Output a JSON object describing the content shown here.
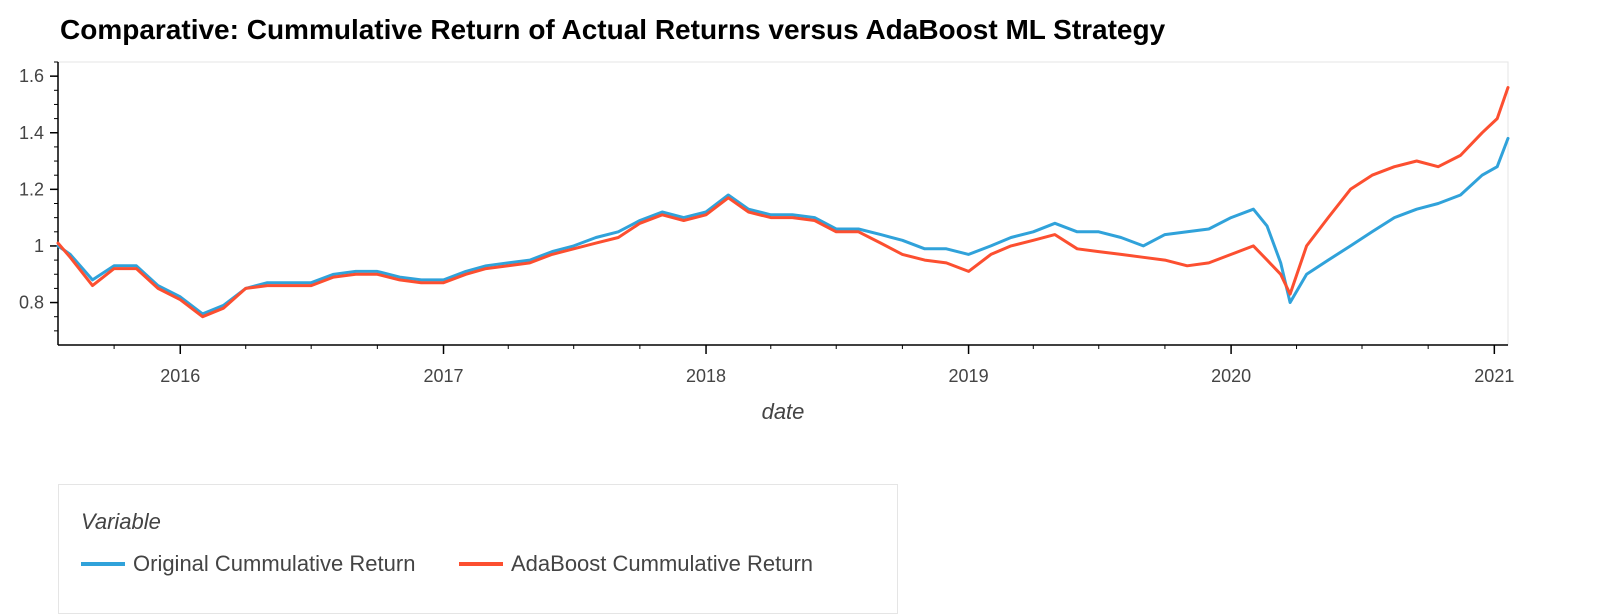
{
  "chart_data": {
    "type": "line",
    "title": "Comparative: Cummulative Return of Actual Returns versus AdaBoost ML Strategy",
    "xlabel": "date",
    "ylabel": "",
    "x_ticks": [
      "2016",
      "2017",
      "2018",
      "2019",
      "2020",
      "2021"
    ],
    "y_ticks": [
      "0.8",
      "1",
      "1.2",
      "1.4",
      "1.6"
    ],
    "xlim": [
      "2015-07-15",
      "2021-01-20"
    ],
    "ylim": [
      0.65,
      1.65
    ],
    "grid": false,
    "legend": {
      "title": "Variable",
      "placement": "bottom-left"
    },
    "series": [
      {
        "name": "Original Cummulative Return",
        "color": "#30a2da",
        "points": [
          [
            "2015-07-15",
            1.0
          ],
          [
            "2015-08-01",
            0.97
          ],
          [
            "2015-09-01",
            0.88
          ],
          [
            "2015-10-01",
            0.93
          ],
          [
            "2015-11-01",
            0.93
          ],
          [
            "2015-12-01",
            0.86
          ],
          [
            "2016-01-01",
            0.82
          ],
          [
            "2016-02-01",
            0.76
          ],
          [
            "2016-03-01",
            0.79
          ],
          [
            "2016-04-01",
            0.85
          ],
          [
            "2016-05-01",
            0.87
          ],
          [
            "2016-06-01",
            0.87
          ],
          [
            "2016-07-01",
            0.87
          ],
          [
            "2016-08-01",
            0.9
          ],
          [
            "2016-09-01",
            0.91
          ],
          [
            "2016-10-01",
            0.91
          ],
          [
            "2016-11-01",
            0.89
          ],
          [
            "2016-12-01",
            0.88
          ],
          [
            "2017-01-01",
            0.88
          ],
          [
            "2017-02-01",
            0.91
          ],
          [
            "2017-03-01",
            0.93
          ],
          [
            "2017-04-01",
            0.94
          ],
          [
            "2017-05-01",
            0.95
          ],
          [
            "2017-06-01",
            0.98
          ],
          [
            "2017-07-01",
            1.0
          ],
          [
            "2017-08-01",
            1.03
          ],
          [
            "2017-09-01",
            1.05
          ],
          [
            "2017-10-01",
            1.09
          ],
          [
            "2017-11-01",
            1.12
          ],
          [
            "2017-12-01",
            1.1
          ],
          [
            "2018-01-01",
            1.12
          ],
          [
            "2018-02-01",
            1.18
          ],
          [
            "2018-03-01",
            1.13
          ],
          [
            "2018-04-01",
            1.11
          ],
          [
            "2018-05-01",
            1.11
          ],
          [
            "2018-06-01",
            1.1
          ],
          [
            "2018-07-01",
            1.06
          ],
          [
            "2018-08-01",
            1.06
          ],
          [
            "2018-09-01",
            1.04
          ],
          [
            "2018-10-01",
            1.02
          ],
          [
            "2018-11-01",
            0.99
          ],
          [
            "2018-12-01",
            0.99
          ],
          [
            "2019-01-01",
            0.97
          ],
          [
            "2019-02-01",
            1.0
          ],
          [
            "2019-03-01",
            1.03
          ],
          [
            "2019-04-01",
            1.05
          ],
          [
            "2019-05-01",
            1.08
          ],
          [
            "2019-06-01",
            1.05
          ],
          [
            "2019-07-01",
            1.05
          ],
          [
            "2019-08-01",
            1.03
          ],
          [
            "2019-09-01",
            1.0
          ],
          [
            "2019-10-01",
            1.04
          ],
          [
            "2019-11-01",
            1.05
          ],
          [
            "2019-12-01",
            1.06
          ],
          [
            "2020-01-01",
            1.1
          ],
          [
            "2020-02-01",
            1.13
          ],
          [
            "2020-02-20",
            1.07
          ],
          [
            "2020-03-10",
            0.94
          ],
          [
            "2020-03-23",
            0.8
          ],
          [
            "2020-04-15",
            0.9
          ],
          [
            "2020-05-15",
            0.95
          ],
          [
            "2020-06-15",
            1.0
          ],
          [
            "2020-07-15",
            1.05
          ],
          [
            "2020-08-15",
            1.1
          ],
          [
            "2020-09-15",
            1.13
          ],
          [
            "2020-10-15",
            1.15
          ],
          [
            "2020-11-15",
            1.18
          ],
          [
            "2020-12-15",
            1.25
          ],
          [
            "2021-01-05",
            1.28
          ],
          [
            "2021-01-20",
            1.38
          ]
        ]
      },
      {
        "name": "AdaBoost Cummulative Return",
        "color": "#fc4f30",
        "points": [
          [
            "2015-07-15",
            1.01
          ],
          [
            "2015-08-01",
            0.96
          ],
          [
            "2015-09-01",
            0.86
          ],
          [
            "2015-10-01",
            0.92
          ],
          [
            "2015-11-01",
            0.92
          ],
          [
            "2015-12-01",
            0.85
          ],
          [
            "2016-01-01",
            0.81
          ],
          [
            "2016-02-01",
            0.75
          ],
          [
            "2016-03-01",
            0.78
          ],
          [
            "2016-04-01",
            0.85
          ],
          [
            "2016-05-01",
            0.86
          ],
          [
            "2016-06-01",
            0.86
          ],
          [
            "2016-07-01",
            0.86
          ],
          [
            "2016-08-01",
            0.89
          ],
          [
            "2016-09-01",
            0.9
          ],
          [
            "2016-10-01",
            0.9
          ],
          [
            "2016-11-01",
            0.88
          ],
          [
            "2016-12-01",
            0.87
          ],
          [
            "2017-01-01",
            0.87
          ],
          [
            "2017-02-01",
            0.9
          ],
          [
            "2017-03-01",
            0.92
          ],
          [
            "2017-04-01",
            0.93
          ],
          [
            "2017-05-01",
            0.94
          ],
          [
            "2017-06-01",
            0.97
          ],
          [
            "2017-07-01",
            0.99
          ],
          [
            "2017-08-01",
            1.01
          ],
          [
            "2017-09-01",
            1.03
          ],
          [
            "2017-10-01",
            1.08
          ],
          [
            "2017-11-01",
            1.11
          ],
          [
            "2017-12-01",
            1.09
          ],
          [
            "2018-01-01",
            1.11
          ],
          [
            "2018-02-01",
            1.17
          ],
          [
            "2018-03-01",
            1.12
          ],
          [
            "2018-04-01",
            1.1
          ],
          [
            "2018-05-01",
            1.1
          ],
          [
            "2018-06-01",
            1.09
          ],
          [
            "2018-07-01",
            1.05
          ],
          [
            "2018-08-01",
            1.05
          ],
          [
            "2018-09-01",
            1.01
          ],
          [
            "2018-10-01",
            0.97
          ],
          [
            "2018-11-01",
            0.95
          ],
          [
            "2018-12-01",
            0.94
          ],
          [
            "2019-01-01",
            0.91
          ],
          [
            "2019-02-01",
            0.97
          ],
          [
            "2019-03-01",
            1.0
          ],
          [
            "2019-04-01",
            1.02
          ],
          [
            "2019-05-01",
            1.04
          ],
          [
            "2019-06-01",
            0.99
          ],
          [
            "2019-07-01",
            0.98
          ],
          [
            "2019-08-01",
            0.97
          ],
          [
            "2019-09-01",
            0.96
          ],
          [
            "2019-10-01",
            0.95
          ],
          [
            "2019-11-01",
            0.93
          ],
          [
            "2019-12-01",
            0.94
          ],
          [
            "2020-01-01",
            0.97
          ],
          [
            "2020-02-01",
            1.0
          ],
          [
            "2020-02-20",
            0.95
          ],
          [
            "2020-03-10",
            0.9
          ],
          [
            "2020-03-23",
            0.83
          ],
          [
            "2020-04-15",
            1.0
          ],
          [
            "2020-05-15",
            1.1
          ],
          [
            "2020-06-15",
            1.2
          ],
          [
            "2020-07-15",
            1.25
          ],
          [
            "2020-08-15",
            1.28
          ],
          [
            "2020-09-15",
            1.3
          ],
          [
            "2020-10-15",
            1.28
          ],
          [
            "2020-11-15",
            1.32
          ],
          [
            "2020-12-15",
            1.4
          ],
          [
            "2021-01-05",
            1.45
          ],
          [
            "2021-01-20",
            1.56
          ]
        ]
      }
    ]
  }
}
